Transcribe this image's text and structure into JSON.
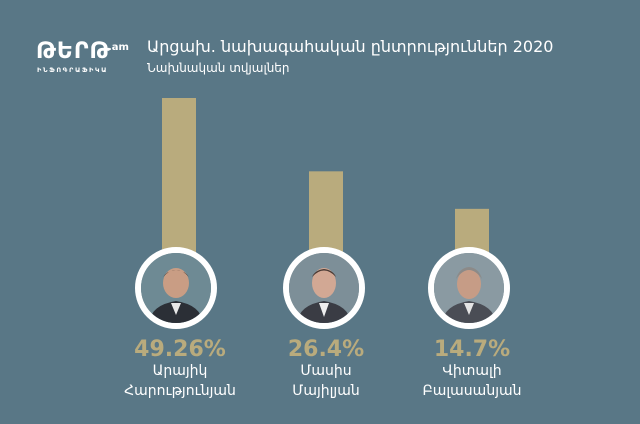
{
  "brand": {
    "logo_main": "ԹԵՐԹ",
    "logo_sup": ".am",
    "logo_sub": "ԻՆՖՈԳՐԱՖԻԿԱ"
  },
  "header": {
    "title": "Արցախ. նախագահական ընտրություններ 2020",
    "subtitle": "Նախնական տվյալներ"
  },
  "colors": {
    "background": "#597786",
    "bar": "#b9ab7d",
    "ring": "#ffffff"
  },
  "chart_data": {
    "type": "bar",
    "categories": [
      "Արայիկ Հարությունյան",
      "Մասիս Մայիլյան",
      "Վիտալի Բալասանյան"
    ],
    "values": [
      49.26,
      26.4,
      14.7
    ],
    "value_labels": [
      "49.26%",
      "26.4%",
      "14.7%"
    ],
    "name_lines": [
      [
        "Արայիկ",
        "Հարությունյան"
      ],
      [
        "Մասիս",
        "Մայիլյան"
      ],
      [
        "Վիտալի",
        "Բալասանյան"
      ]
    ],
    "grid": false
  }
}
